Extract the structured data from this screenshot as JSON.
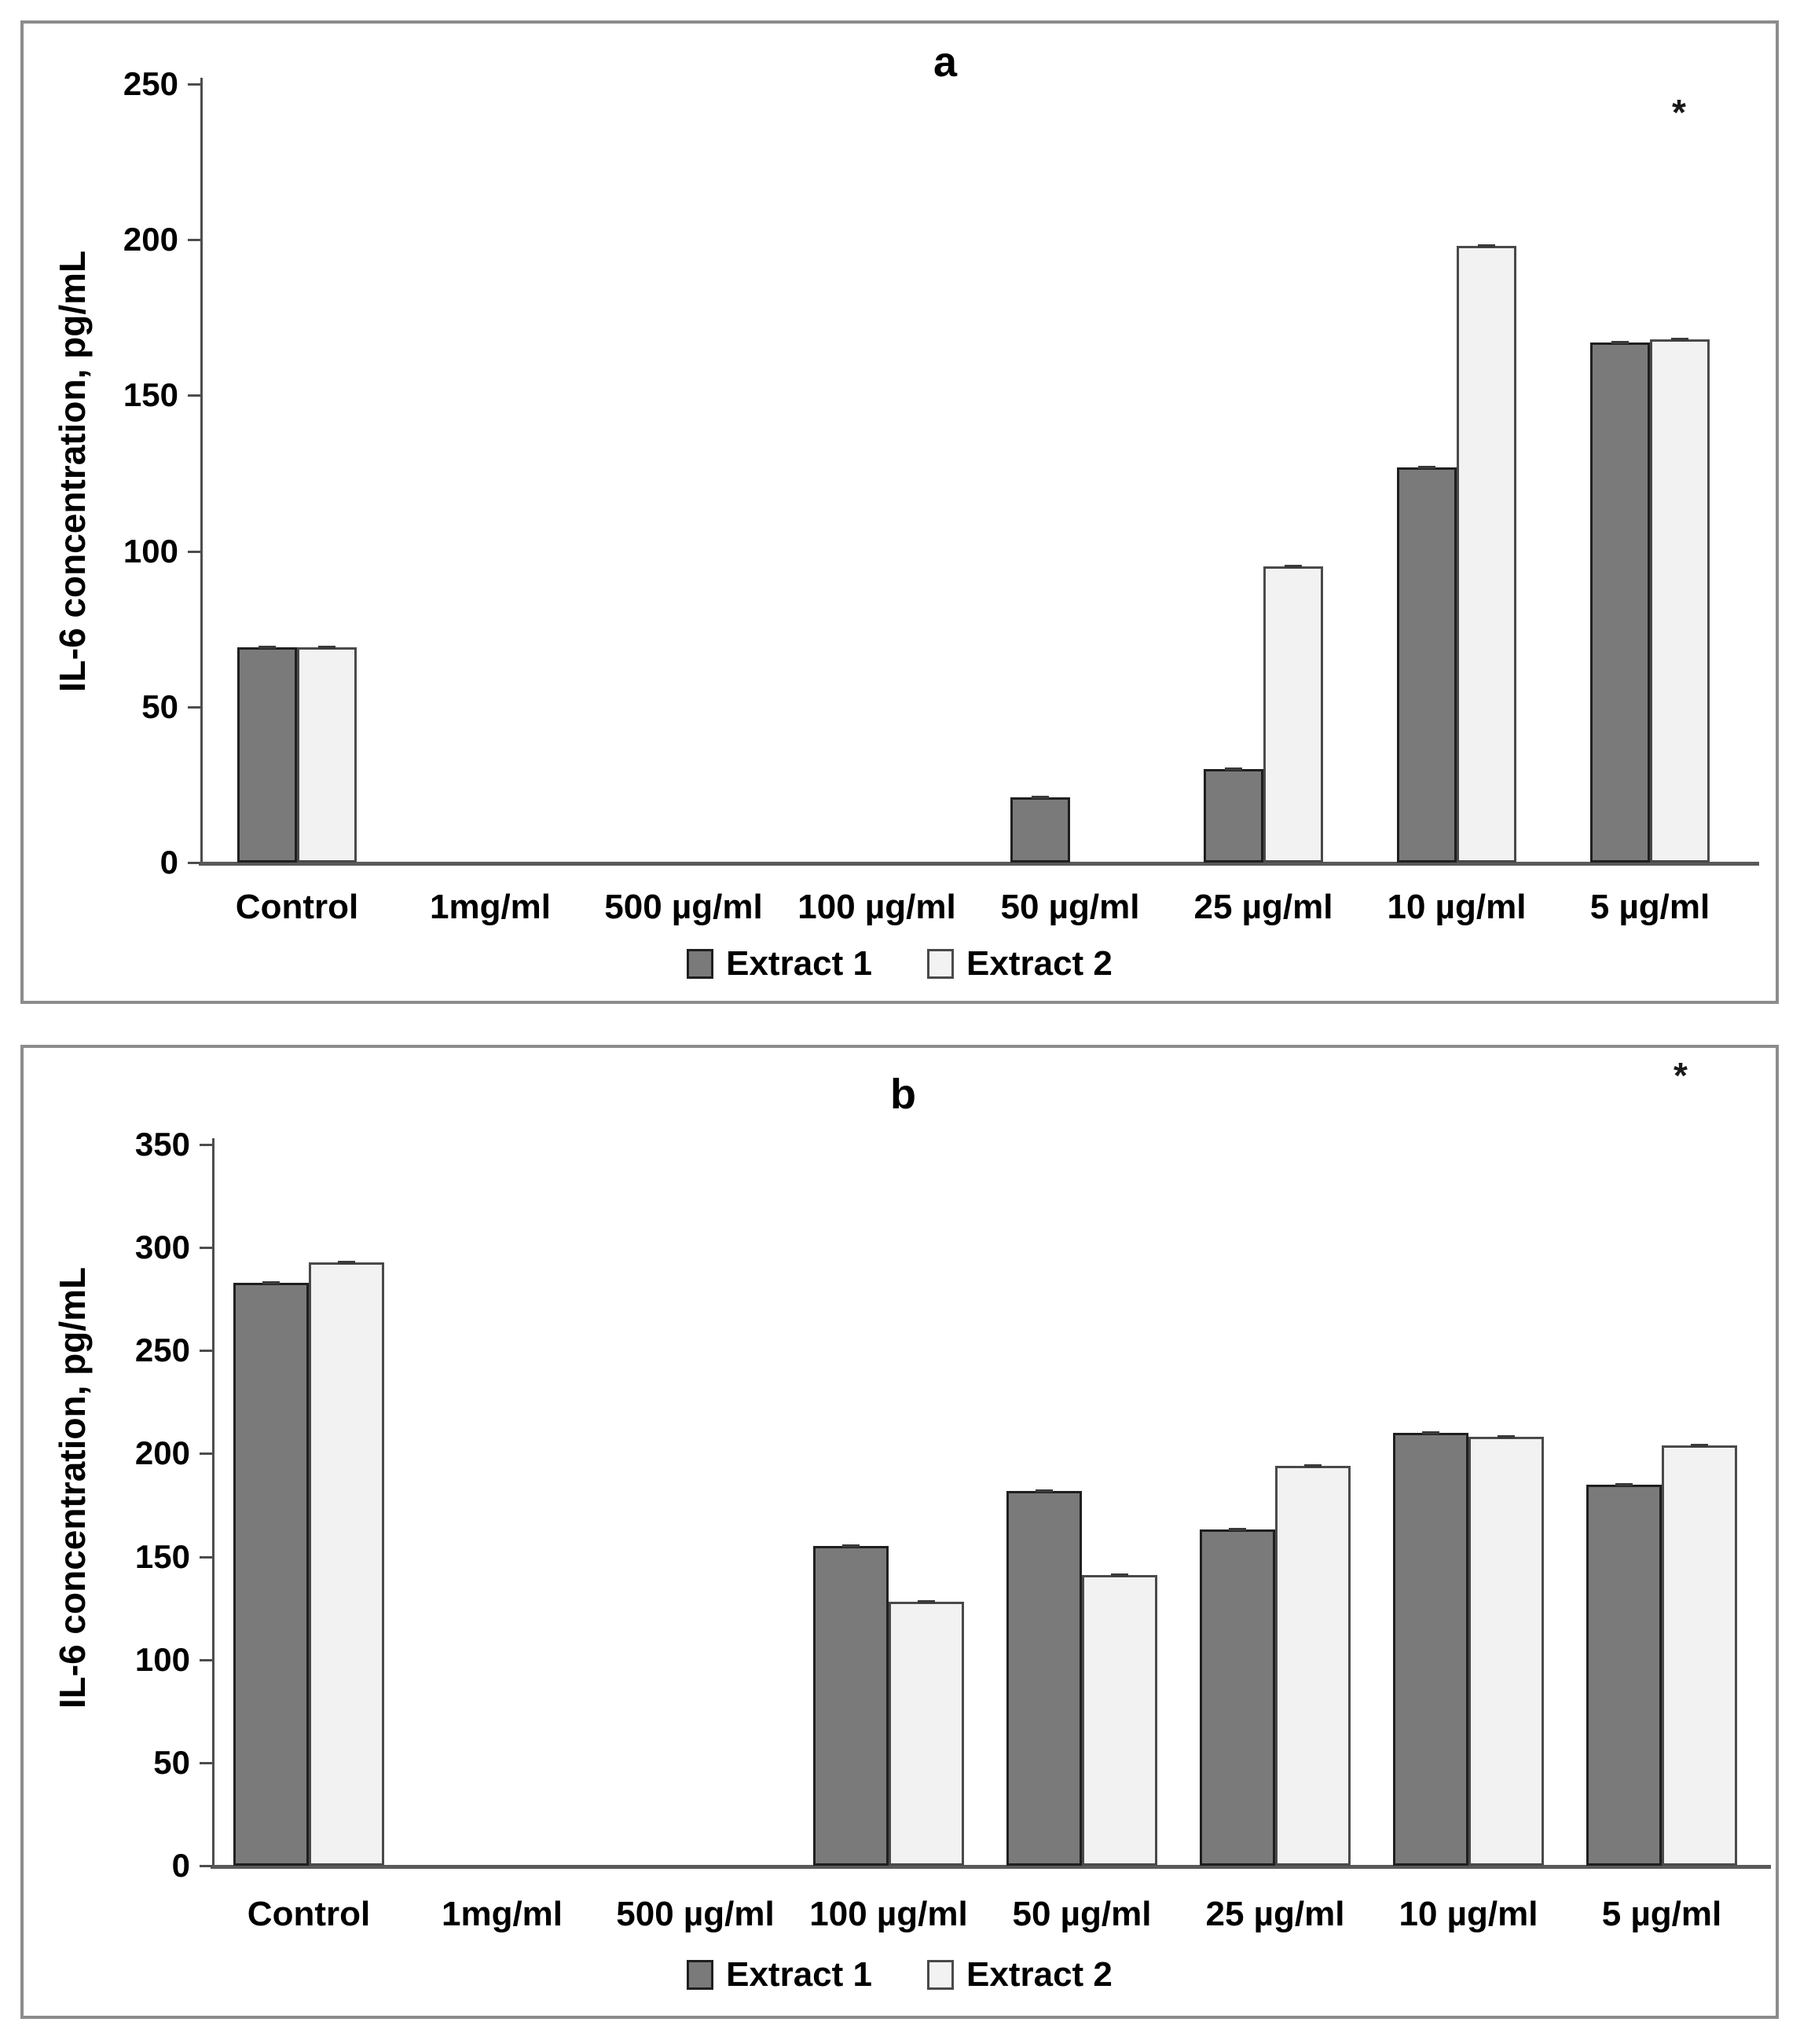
{
  "figure": {
    "description": "Two-panel grouped bar figure of IL-6 concentration",
    "y_axis_title": "IL-6 concentration, pg/mL"
  },
  "chart_data": [
    {
      "type": "bar",
      "panel_label": "a",
      "significance_marker": "*",
      "ylabel": "IL-6 concentration, pg/mL",
      "xlabel": "",
      "ylim": [
        0,
        250
      ],
      "ytick_step": 50,
      "ytick_labels": [
        "0",
        "50",
        "100",
        "150",
        "200",
        "250"
      ],
      "grid": false,
      "legend_position": "bottom-center",
      "categories": [
        "Control",
        "1mg/ml",
        "500 µg/ml",
        "100 µg/ml",
        "50 µg/ml",
        "25 µg/ml",
        "10 µg/ml",
        "5 µg/ml"
      ],
      "series": [
        {
          "name": "Extract 1",
          "fill": "#7a7a7a",
          "border": "#1f1f1f",
          "values": [
            69,
            0,
            0,
            0,
            21,
            30,
            127,
            167
          ]
        },
        {
          "name": "Extract 2",
          "fill": "#f2f2f2",
          "border": "#4a4a4a",
          "values": [
            69,
            0,
            0,
            0,
            0,
            95,
            198,
            168
          ]
        }
      ]
    },
    {
      "type": "bar",
      "panel_label": "b",
      "significance_marker": "*",
      "ylabel": "IL-6 concentration, pg/mL",
      "xlabel": "",
      "ylim": [
        0,
        350
      ],
      "ytick_step": 50,
      "ytick_labels": [
        "0",
        "50",
        "100",
        "150",
        "200",
        "250",
        "300",
        "350"
      ],
      "grid": false,
      "legend_position": "bottom-center",
      "categories": [
        "Control",
        "1mg/ml",
        "500 µg/ml",
        "100 µg/ml",
        "50 µg/ml",
        "25 µg/ml",
        "10 µg/ml",
        "5 µg/ml"
      ],
      "series": [
        {
          "name": "Extract 1",
          "fill": "#7a7a7a",
          "border": "#1f1f1f",
          "values": [
            283,
            0,
            0,
            155,
            182,
            163,
            210,
            185
          ]
        },
        {
          "name": "Extract 2",
          "fill": "#f2f2f2",
          "border": "#4a4a4a",
          "values": [
            293,
            0,
            0,
            128,
            141,
            194,
            208,
            204
          ]
        }
      ]
    }
  ]
}
